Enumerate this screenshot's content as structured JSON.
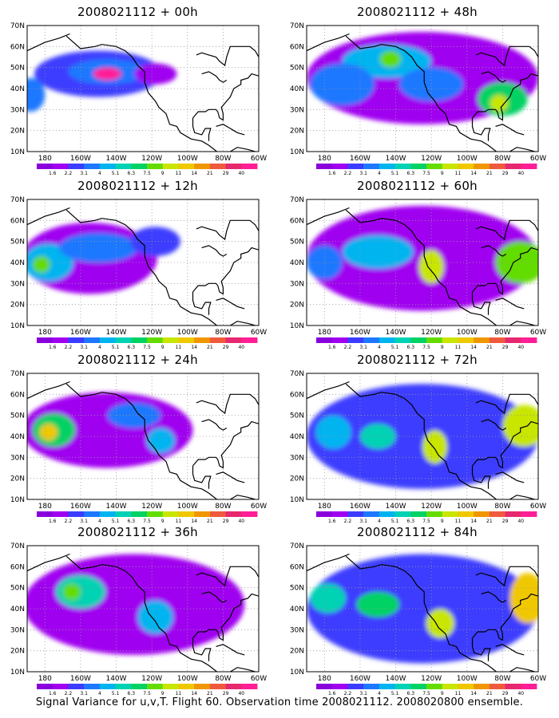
{
  "figure": {
    "footer": "Signal Variance for u,v,T. Flight 60. Observation time 2008021112. 2008020800 ensemble.",
    "lat_labels": [
      "70N",
      "60N",
      "50N",
      "40N",
      "30N",
      "20N",
      "10N"
    ],
    "lon_labels": [
      "180",
      "160W",
      "140W",
      "120W",
      "100W",
      "80W",
      "60W"
    ],
    "colorbar": {
      "levels": [
        "1.6",
        "2.2",
        "3.1",
        "4",
        "5.1",
        "6.3",
        "7.5",
        "9",
        "11",
        "14",
        "21",
        "29",
        "40"
      ],
      "colors": [
        "#8a00dc",
        "#a000f0",
        "#3c3cff",
        "#1e78ff",
        "#00b4f0",
        "#00d2b4",
        "#00d264",
        "#64dc00",
        "#c8e600",
        "#f0c800",
        "#f09600",
        "#f05a3c",
        "#e6286e",
        "#ff1e96"
      ]
    }
  },
  "panels": [
    {
      "title": "2008021112 + 00h",
      "col": 0,
      "row": 0
    },
    {
      "title": "2008021112 + 48h",
      "col": 1,
      "row": 0
    },
    {
      "title": "2008021112 + 12h",
      "col": 0,
      "row": 1
    },
    {
      "title": "2008021112 + 60h",
      "col": 1,
      "row": 1
    },
    {
      "title": "2008021112 + 24h",
      "col": 0,
      "row": 2
    },
    {
      "title": "2008021112 + 72h",
      "col": 1,
      "row": 2
    },
    {
      "title": "2008021112 + 36h",
      "col": 0,
      "row": 3
    },
    {
      "title": "2008021112 + 84h",
      "col": 1,
      "row": 3
    }
  ],
  "chart_data": {
    "type": "heatmap",
    "projection": "lon-lat",
    "lon_range": [
      -190,
      -60
    ],
    "lat_range": [
      10,
      70
    ],
    "level_index_note": "blob level indexes into colorbar.levels",
    "fields": {
      "00h": [
        {
          "lon": -150,
          "lat": 47,
          "rlon": 36,
          "rlat": 11,
          "level": 2
        },
        {
          "lon": -145,
          "lat": 48,
          "rlon": 22,
          "rlat": 6,
          "level": 3
        },
        {
          "lon": -188,
          "lat": 37,
          "rlon": 8,
          "rlat": 8,
          "level": 3
        },
        {
          "lon": -118,
          "lat": 47,
          "rlon": 12,
          "rlat": 5,
          "level": 1
        },
        {
          "lon": -145,
          "lat": 47,
          "rlon": 8,
          "rlat": 3,
          "level": 13
        }
      ],
      "48h": [
        {
          "lon": -125,
          "lat": 45,
          "rlon": 65,
          "rlat": 22,
          "level": 1
        },
        {
          "lon": -145,
          "lat": 53,
          "rlon": 25,
          "rlat": 8,
          "level": 4
        },
        {
          "lon": -143,
          "lat": 54,
          "rlon": 6,
          "rlat": 4,
          "level": 7
        },
        {
          "lon": -120,
          "lat": 42,
          "rlon": 18,
          "rlat": 8,
          "level": 3
        },
        {
          "lon": -80,
          "lat": 35,
          "rlon": 14,
          "rlat": 8,
          "level": 6
        },
        {
          "lon": -82,
          "lat": 33,
          "rlon": 5,
          "rlat": 4,
          "level": 8
        },
        {
          "lon": -170,
          "lat": 42,
          "rlon": 18,
          "rlat": 10,
          "level": 3
        }
      ],
      "12h": [
        {
          "lon": -155,
          "lat": 42,
          "rlon": 38,
          "rlat": 17,
          "level": 1
        },
        {
          "lon": -178,
          "lat": 40,
          "rlon": 14,
          "rlat": 9,
          "level": 4
        },
        {
          "lon": -182,
          "lat": 39,
          "rlon": 5,
          "rlat": 4,
          "level": 7
        },
        {
          "lon": -150,
          "lat": 47,
          "rlon": 22,
          "rlat": 7,
          "level": 3
        },
        {
          "lon": -118,
          "lat": 50,
          "rlon": 14,
          "rlat": 7,
          "level": 2
        }
      ],
      "60h": [
        {
          "lon": -125,
          "lat": 42,
          "rlon": 65,
          "rlat": 25,
          "level": 1
        },
        {
          "lon": -120,
          "lat": 38,
          "rlon": 7,
          "rlat": 8,
          "level": 8
        },
        {
          "lon": -70,
          "lat": 40,
          "rlon": 14,
          "rlat": 10,
          "level": 7
        },
        {
          "lon": -150,
          "lat": 45,
          "rlon": 20,
          "rlat": 8,
          "level": 4
        },
        {
          "lon": -180,
          "lat": 40,
          "rlon": 10,
          "rlat": 8,
          "level": 3
        }
      ],
      "24h": [
        {
          "lon": -145,
          "lat": 43,
          "rlon": 48,
          "rlat": 18,
          "level": 1
        },
        {
          "lon": -175,
          "lat": 43,
          "rlon": 12,
          "rlat": 8,
          "level": 6
        },
        {
          "lon": -178,
          "lat": 42,
          "rlon": 5,
          "rlat": 4,
          "level": 9
        },
        {
          "lon": -130,
          "lat": 50,
          "rlon": 15,
          "rlat": 6,
          "level": 3
        },
        {
          "lon": -115,
          "lat": 38,
          "rlon": 8,
          "rlat": 6,
          "level": 4
        }
      ],
      "72h": [
        {
          "lon": -125,
          "lat": 40,
          "rlon": 65,
          "rlat": 25,
          "level": 2
        },
        {
          "lon": -118,
          "lat": 35,
          "rlon": 7,
          "rlat": 8,
          "level": 8
        },
        {
          "lon": -68,
          "lat": 45,
          "rlon": 12,
          "rlat": 10,
          "level": 8
        },
        {
          "lon": -175,
          "lat": 42,
          "rlon": 10,
          "rlat": 8,
          "level": 4
        },
        {
          "lon": -150,
          "lat": 40,
          "rlon": 10,
          "rlat": 6,
          "level": 5
        }
      ],
      "36h": [
        {
          "lon": -130,
          "lat": 42,
          "rlon": 62,
          "rlat": 24,
          "level": 1
        },
        {
          "lon": -160,
          "lat": 48,
          "rlon": 14,
          "rlat": 8,
          "level": 5
        },
        {
          "lon": -165,
          "lat": 48,
          "rlon": 5,
          "rlat": 4,
          "level": 7
        },
        {
          "lon": -118,
          "lat": 36,
          "rlon": 10,
          "rlat": 8,
          "level": 4
        }
      ],
      "84h": [
        {
          "lon": -125,
          "lat": 40,
          "rlon": 65,
          "rlat": 26,
          "level": 2
        },
        {
          "lon": -115,
          "lat": 33,
          "rlon": 8,
          "rlat": 7,
          "level": 8
        },
        {
          "lon": -66,
          "lat": 45,
          "rlon": 10,
          "rlat": 12,
          "level": 9
        },
        {
          "lon": -178,
          "lat": 45,
          "rlon": 10,
          "rlat": 7,
          "level": 5
        },
        {
          "lon": -150,
          "lat": 42,
          "rlon": 12,
          "rlat": 6,
          "level": 6
        }
      ]
    }
  }
}
